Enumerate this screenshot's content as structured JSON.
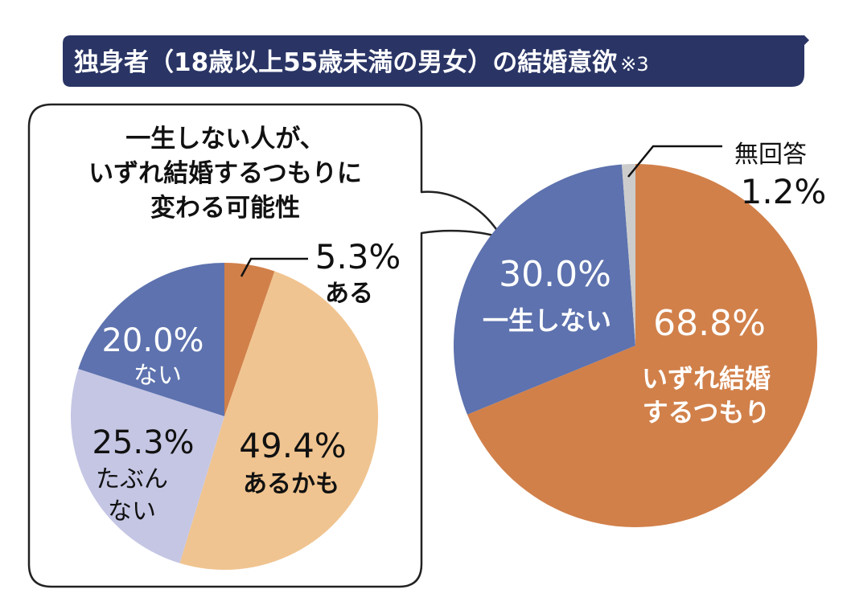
{
  "title": "独身者（18歳以上55歳未満の男女）の結婚意欲",
  "title_note": "※3",
  "colors": {
    "title_bg": "#2a3566",
    "orange": "#d1804a",
    "blue": "#5d72ae",
    "gray": "#cccccc",
    "light_orange": "#f0c490",
    "lavender": "#c5c6e4"
  },
  "chart_data": [
    {
      "type": "pie",
      "labels": [
        "いずれ結婚するつもり",
        "一生しない",
        "無回答"
      ],
      "values": [
        68.8,
        30.0,
        1.2
      ],
      "value_labels": [
        "68.8%",
        "30.0%",
        "1.2%"
      ],
      "label_lines": [
        [
          "いずれ結婚",
          "するつもり"
        ],
        [
          "一生しない"
        ],
        [
          "無回答"
        ]
      ],
      "colors": [
        "#d1804a",
        "#5d72ae",
        "#cccccc"
      ]
    },
    {
      "type": "pie",
      "title_lines": [
        "一生しない人が、",
        "いずれ結婚するつもりに",
        "変わる可能性"
      ],
      "labels": [
        "ある",
        "あるかも",
        "たぶんない",
        "ない"
      ],
      "values": [
        5.3,
        49.4,
        25.3,
        20.0
      ],
      "value_labels": [
        "5.3%",
        "49.4%",
        "25.3%",
        "20.0%"
      ],
      "label_lines": [
        [
          "ある"
        ],
        [
          "あるかも"
        ],
        [
          "たぶん",
          "ない"
        ],
        [
          "ない"
        ]
      ],
      "colors": [
        "#d1804a",
        "#f0c490",
        "#c5c6e4",
        "#5d72ae"
      ]
    }
  ]
}
